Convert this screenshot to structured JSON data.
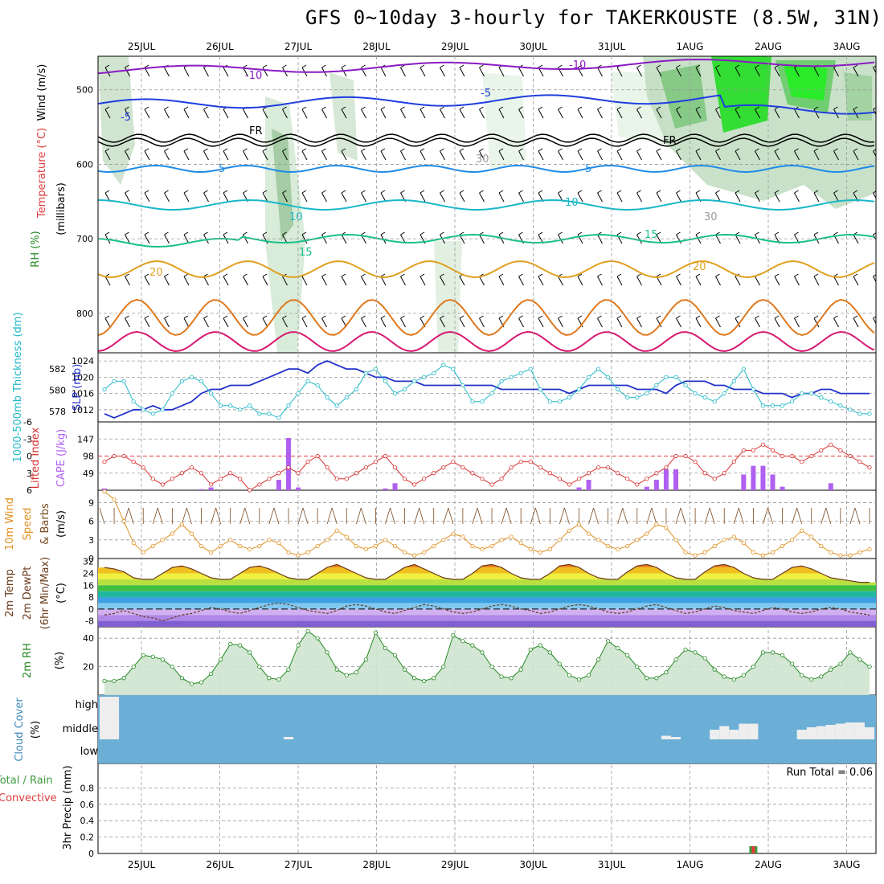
{
  "title": "GFS 0~10day 3-hourly for TAKERKOUSTE (8.5W, 31N)",
  "dates": [
    "25JUL",
    "26JUL",
    "27JUL",
    "28JUL",
    "29JUL",
    "30JUL",
    "31JUL",
    "1AUG",
    "2AUG",
    "3AUG"
  ],
  "run_total_label": "Run Total = 0.06",
  "colors": {
    "temp_m10": "#8a1ac4",
    "temp_m5": "#1f3ee0",
    "temp_fr": "#000000",
    "temp_5": "#1e8be8",
    "temp_10": "#18b8c8",
    "temp_15": "#18c08a",
    "temp_20": "#e0a020",
    "temp_25": "#e0781c",
    "temp_30": "#d81870",
    "slp": "#2030c8",
    "thickness": "#20b8c8",
    "lifted_index": "#d83030",
    "cape": "#b060f0",
    "wind10": "#e09020",
    "rh2m": "#228822",
    "cloud": "#6baed6",
    "precip_total": "#3c9a3c",
    "precip_conv": "#e03c3c"
  },
  "panels": {
    "upper": {
      "ylabel_wind": "Wind (m/s)",
      "ylabel_temp": "Temperature (°C)",
      "ylabel_rh": "RH (%)",
      "ylabel_mb": "(millibars)",
      "ticks": [
        "500",
        "600",
        "700",
        "800"
      ],
      "contour_labels": [
        "-10",
        "-10",
        "-5",
        "-5",
        "FR",
        "FR",
        "5",
        "5",
        "10",
        "10",
        "15",
        "15",
        "20",
        "20",
        "30",
        "30"
      ]
    },
    "slp": {
      "ylabel_thick": "1000-500mb Thickness (dm)",
      "ylabel_slp": "SLP (mb)",
      "ticks_left": [
        "582",
        "580",
        "578"
      ],
      "ticks_right": [
        "1024",
        "1020",
        "1016",
        "1012"
      ]
    },
    "li": {
      "ylabel_li": "Lifted Index",
      "ylabel_cape": "CAPE (J/kg)",
      "ticks_left": [
        "-6",
        "-3",
        "0",
        "3",
        "6"
      ],
      "ticks_right": [
        "147",
        "98",
        "49"
      ]
    },
    "wind10": {
      "ylabel_a": "10m Wind",
      "ylabel_b": "Speed",
      "ylabel_c": "& Barbs",
      "ylabel_d": "(m/s)",
      "ticks": [
        "9",
        "6",
        "3",
        "0"
      ]
    },
    "temp2m": {
      "ylabel_a": "2m Temp",
      "ylabel_b": "2m DewPt",
      "ylabel_c": "(6hr Min/Max)",
      "ylabel_d": "(°C)",
      "ticks": [
        "32",
        "24",
        "16",
        "8",
        "0",
        "-8"
      ]
    },
    "rh2m": {
      "ylabel_a": "2m RH",
      "ylabel_b": "(%)",
      "ticks": [
        "40",
        "20"
      ]
    },
    "cloud": {
      "ylabel_a": "Cloud Cover",
      "ylabel_b": "(%)",
      "levels": [
        "high",
        "middle",
        "low"
      ]
    },
    "precip": {
      "ylabel_a": "Total / Rain",
      "ylabel_b": "Convective",
      "ylabel_c": "3hr Precip (mm)",
      "ticks": [
        "0.8",
        "0.6",
        "0.4",
        "0.2",
        "0"
      ]
    }
  },
  "chart_data": [
    {
      "type": "line",
      "panel": "slp_thickness",
      "x_unit": "3-hour step",
      "series": [
        {
          "name": "SLP (mb)",
          "values": [
            1011,
            1010,
            1011,
            1012,
            1012,
            1013,
            1012,
            1012,
            1013,
            1014,
            1016,
            1017,
            1017,
            1018,
            1018,
            1018,
            1019,
            1020,
            1021,
            1022,
            1022,
            1021,
            1023,
            1024,
            1023,
            1022,
            1022,
            1021,
            1020,
            1020,
            1019,
            1019,
            1019,
            1018,
            1018,
            1018,
            1018,
            1018,
            1018,
            1018,
            1018,
            1017,
            1017,
            1017,
            1017,
            1017,
            1017,
            1017,
            1016,
            1017,
            1018,
            1018,
            1018,
            1018,
            1018,
            1017,
            1017,
            1017,
            1016,
            1018,
            1019,
            1019,
            1019,
            1018,
            1018,
            1017,
            1017,
            1017,
            1016,
            1016,
            1016,
            1015,
            1016,
            1016,
            1017,
            1017,
            1016,
            1016,
            1016,
            1016
          ]
        },
        {
          "name": "1000-500mb Thickness (dm)",
          "values": [
            1017,
            1019,
            1019,
            1014,
            1012,
            1011,
            1012,
            1016,
            1019,
            1020,
            1019,
            1016,
            1013,
            1013,
            1012,
            1013,
            1011,
            1011,
            1010,
            1013,
            1016,
            1019,
            1018,
            1015,
            1013,
            1015,
            1017,
            1021,
            1022,
            1019,
            1016,
            1017,
            1019,
            1020,
            1021,
            1023,
            1022,
            1018,
            1014,
            1014,
            1016,
            1019,
            1020,
            1021,
            1022,
            1017,
            1014,
            1014,
            1015,
            1017,
            1020,
            1022,
            1020,
            1017,
            1015,
            1015,
            1016,
            1018,
            1020,
            1020,
            1018,
            1016,
            1015,
            1014,
            1016,
            1019,
            1022,
            1017,
            1013,
            1013,
            1013,
            1014,
            1016,
            1016,
            1015,
            1014,
            1013,
            1012,
            1011,
            1011
          ]
        }
      ],
      "ylim_slp": [
        1009,
        1026
      ],
      "ylim_thickness": [
        577,
        583.5
      ]
    },
    {
      "type": "line",
      "panel": "lifted_index_cape",
      "series": [
        {
          "name": "Lifted Index",
          "values": [
            1,
            0,
            0,
            1,
            2,
            4,
            5,
            4,
            3,
            2,
            3,
            5,
            4,
            3,
            4,
            6,
            5,
            4,
            3,
            2,
            3,
            1,
            0,
            2,
            4,
            4,
            3,
            2,
            1,
            0,
            2,
            4,
            5,
            4,
            3,
            2,
            1,
            2,
            3,
            4,
            5,
            4,
            2,
            1,
            1,
            2,
            3,
            4,
            5,
            4,
            3,
            2,
            2,
            3,
            4,
            5,
            4,
            3,
            2,
            0,
            0,
            1,
            3,
            4,
            3,
            1,
            -1,
            -1,
            -2,
            -1,
            0,
            0,
            1,
            0,
            -1,
            -2,
            -1,
            0,
            1,
            2
          ]
        },
        {
          "name": "CAPE (J/kg)",
          "values": [
            5,
            0,
            0,
            0,
            0,
            0,
            0,
            0,
            0,
            0,
            3,
            8,
            0,
            0,
            0,
            0,
            0,
            0,
            30,
            150,
            8,
            0,
            0,
            0,
            0,
            0,
            0,
            0,
            0,
            5,
            20,
            0,
            0,
            0,
            0,
            0,
            0,
            0,
            0,
            0,
            0,
            0,
            0,
            0,
            0,
            0,
            0,
            0,
            0,
            8,
            30,
            0,
            0,
            0,
            0,
            0,
            10,
            30,
            60,
            60,
            0,
            0,
            0,
            0,
            0,
            0,
            45,
            70,
            70,
            45,
            10,
            0,
            0,
            0,
            0,
            20,
            0,
            0,
            0,
            0
          ]
        }
      ],
      "ylim_li": [
        6,
        -6
      ],
      "ylim_cape": [
        0,
        196
      ]
    },
    {
      "type": "line",
      "panel": "wind10m",
      "series": [
        {
          "name": "10m Wind Speed",
          "values": [
            10.8,
            9.5,
            6,
            2.5,
            1,
            2,
            3,
            4,
            5.5,
            4,
            2,
            1,
            2,
            3,
            2,
            1.5,
            2,
            3,
            2.5,
            1,
            0.5,
            1,
            2,
            3,
            4.5,
            3.5,
            2,
            1.5,
            2,
            3,
            2,
            1,
            0.5,
            1,
            2,
            3,
            4,
            3.5,
            2,
            1.5,
            2,
            3,
            3.5,
            2.5,
            1.5,
            1,
            1.5,
            3,
            4.5,
            5.5,
            4,
            3,
            2,
            1.5,
            2,
            3,
            4,
            5.5,
            5,
            3,
            1,
            0.5,
            1,
            2,
            3,
            3.5,
            2.5,
            1,
            0.5,
            1,
            2,
            3,
            4.5,
            3.5,
            2,
            1,
            0.5,
            0.5,
            1,
            1.5
          ]
        }
      ],
      "ylim": [
        0,
        11
      ]
    },
    {
      "type": "line",
      "panel": "temp2m",
      "series": [
        {
          "name": "2m Temp",
          "values": [
            28,
            27,
            25,
            21,
            20,
            20,
            24,
            28,
            29,
            27,
            24,
            21,
            20,
            20,
            24,
            28,
            29,
            27,
            24,
            21,
            20,
            20,
            24,
            28,
            30,
            27,
            24,
            21,
            20,
            20,
            24,
            28,
            30,
            27,
            24,
            21,
            20,
            20,
            24,
            29,
            30,
            28,
            24,
            21,
            20,
            20,
            24,
            29,
            30,
            28,
            24,
            21,
            20,
            20,
            25,
            29,
            30,
            28,
            24,
            21,
            20,
            20,
            25,
            29,
            30,
            28,
            24,
            21,
            20,
            20,
            24,
            28,
            29,
            27,
            24,
            21,
            20,
            19,
            18,
            18
          ]
        },
        {
          "name": "2m DewPt",
          "values": [
            -4,
            -3,
            -1,
            -3,
            -5,
            -6,
            -8,
            -6,
            -4,
            -3,
            -1,
            1,
            0,
            -2,
            -3,
            -1,
            1,
            3,
            4,
            3,
            1,
            -1,
            -2,
            -3,
            -1,
            2,
            3,
            2,
            0,
            -2,
            -3,
            -1,
            1,
            3,
            2,
            0,
            -2,
            -3,
            -2,
            0,
            2,
            3,
            2,
            0,
            -1,
            -3,
            -2,
            0,
            2,
            3,
            2,
            0,
            -2,
            -3,
            -2,
            0,
            2,
            3,
            1,
            -1,
            -3,
            -2,
            0,
            2,
            1,
            -1,
            -2,
            -3,
            -1,
            1,
            0,
            -2,
            -3,
            -2,
            0,
            1,
            0,
            -2,
            -3,
            -4
          ]
        }
      ],
      "ylim": [
        -12,
        34
      ]
    },
    {
      "type": "area",
      "panel": "rh2m",
      "series": [
        {
          "name": "2m RH",
          "values": [
            10,
            10,
            12,
            20,
            28,
            27,
            25,
            20,
            12,
            8,
            9,
            15,
            25,
            36,
            35,
            30,
            20,
            12,
            11,
            18,
            35,
            45,
            40,
            30,
            18,
            14,
            16,
            25,
            44,
            33,
            28,
            18,
            12,
            10,
            12,
            20,
            42,
            38,
            35,
            30,
            20,
            13,
            12,
            18,
            32,
            35,
            30,
            22,
            14,
            11,
            14,
            25,
            38,
            33,
            28,
            20,
            12,
            12,
            16,
            25,
            32,
            30,
            26,
            18,
            13,
            11,
            14,
            20,
            30,
            30,
            28,
            22,
            14,
            11,
            13,
            18,
            22,
            30,
            25,
            20
          ]
        }
      ],
      "ylim": [
        0,
        48
      ]
    },
    {
      "type": "bar",
      "panel": "cloud",
      "series": [
        {
          "name": "high",
          "values": [
            100,
            100,
            0,
            0,
            0,
            0,
            0,
            0,
            0,
            0,
            0,
            0,
            0,
            0,
            0,
            0,
            0,
            0,
            0,
            0,
            0,
            0,
            0,
            0,
            0,
            0,
            0,
            0,
            0,
            0,
            0,
            0,
            0,
            0,
            0,
            0,
            0,
            0,
            0,
            0,
            0,
            0,
            0,
            0,
            0,
            0,
            0,
            0,
            0,
            0,
            0,
            0,
            0,
            0,
            0,
            0,
            0,
            0,
            0,
            0,
            0,
            0,
            0,
            0,
            0,
            0,
            0,
            0,
            0,
            0,
            0,
            0,
            0,
            0,
            0,
            0,
            0,
            0,
            0,
            0
          ]
        },
        {
          "name": "middle",
          "values": [
            70,
            100,
            0,
            0,
            0,
            0,
            0,
            0,
            0,
            0,
            0,
            0,
            0,
            0,
            0,
            0,
            0,
            0,
            0,
            10,
            0,
            0,
            0,
            0,
            0,
            0,
            0,
            0,
            0,
            0,
            0,
            0,
            0,
            0,
            0,
            0,
            0,
            0,
            0,
            0,
            0,
            0,
            0,
            0,
            0,
            0,
            0,
            0,
            0,
            0,
            0,
            0,
            0,
            0,
            0,
            0,
            0,
            0,
            15,
            10,
            0,
            0,
            0,
            40,
            55,
            40,
            65,
            65,
            0,
            0,
            0,
            0,
            40,
            50,
            55,
            60,
            65,
            70,
            70,
            50
          ]
        }
      ]
    },
    {
      "type": "bar",
      "panel": "precip",
      "series": [
        {
          "name": "3hr Precip",
          "values": [
            0,
            0,
            0,
            0,
            0,
            0,
            0,
            0,
            0,
            0,
            0,
            0,
            0,
            0,
            0,
            0,
            0,
            0,
            0,
            0,
            0,
            0,
            0,
            0,
            0,
            0,
            0,
            0,
            0,
            0,
            0,
            0,
            0,
            0,
            0,
            0,
            0,
            0,
            0,
            0,
            0,
            0,
            0,
            0,
            0,
            0,
            0,
            0,
            0,
            0,
            0,
            0,
            0,
            0,
            0,
            0,
            0,
            0,
            0,
            0,
            0,
            0,
            0,
            0,
            0,
            0,
            0,
            0.06,
            0,
            0,
            0,
            0,
            0,
            0,
            0,
            0,
            0,
            0,
            0,
            0
          ]
        }
      ],
      "ylim": [
        0,
        1.0
      ]
    }
  ]
}
